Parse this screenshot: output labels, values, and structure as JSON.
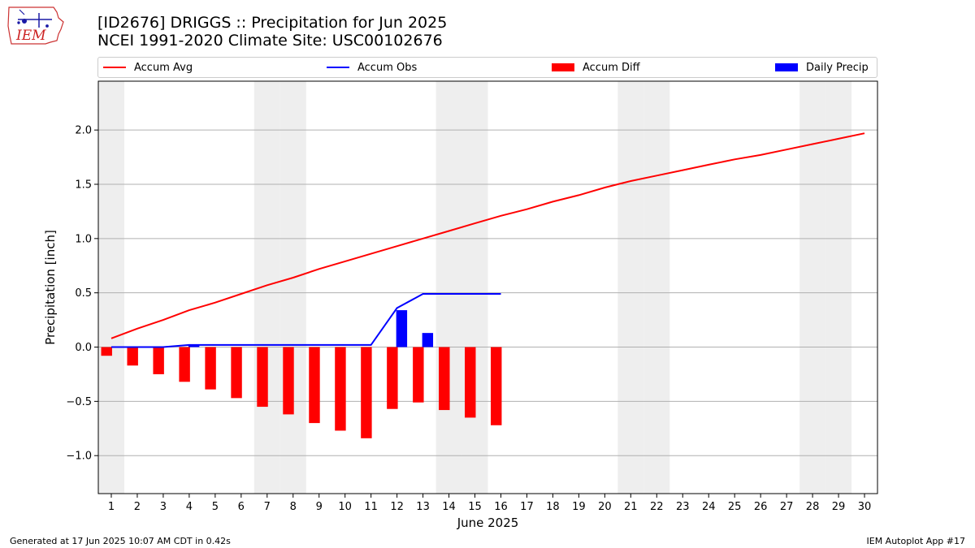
{
  "logo": {
    "text": "IEM"
  },
  "title": {
    "line1": "[ID2676] DRIGGS :: Precipitation for Jun 2025",
    "line2": "NCEI 1991-2020 Climate Site: USC00102676"
  },
  "chart_data": {
    "type": "bar",
    "xlabel": "June 2025",
    "ylabel": "Precipitation [inch]",
    "ylim": [
      -1.35,
      2.45
    ],
    "yticks": [
      -1.0,
      -0.5,
      0.0,
      0.5,
      1.0,
      1.5,
      2.0
    ],
    "ytick_labels": [
      "−1.0",
      "−0.5",
      "0.0",
      "0.5",
      "1.0",
      "1.5",
      "2.0"
    ],
    "xlim": [
      0.5,
      30.5
    ],
    "categories": [
      "1",
      "2",
      "3",
      "4",
      "5",
      "6",
      "7",
      "8",
      "9",
      "10",
      "11",
      "12",
      "13",
      "14",
      "15",
      "16",
      "17",
      "18",
      "19",
      "20",
      "21",
      "22",
      "23",
      "24",
      "25",
      "26",
      "27",
      "28",
      "29",
      "30"
    ],
    "grid": "horizontal",
    "legend": "top",
    "weekend_shading": [
      1,
      7,
      8,
      14,
      15,
      21,
      22,
      28,
      29
    ],
    "series": [
      {
        "name": "Accum Avg",
        "kind": "line",
        "color": "#ff0000",
        "x": [
          1,
          2,
          3,
          4,
          5,
          6,
          7,
          8,
          9,
          10,
          11,
          12,
          13,
          14,
          15,
          16,
          17,
          18,
          19,
          20,
          21,
          22,
          23,
          24,
          25,
          26,
          27,
          28,
          29,
          30
        ],
        "values": [
          0.08,
          0.17,
          0.25,
          0.34,
          0.41,
          0.49,
          0.57,
          0.64,
          0.72,
          0.79,
          0.86,
          0.93,
          1.0,
          1.07,
          1.14,
          1.21,
          1.27,
          1.34,
          1.4,
          1.47,
          1.53,
          1.58,
          1.63,
          1.68,
          1.73,
          1.77,
          1.82,
          1.87,
          1.92,
          1.97
        ]
      },
      {
        "name": "Accum Obs",
        "kind": "line",
        "color": "#0000ff",
        "x": [
          1,
          2,
          3,
          4,
          5,
          6,
          7,
          8,
          9,
          10,
          11,
          12,
          13,
          14,
          15,
          16
        ],
        "values": [
          0.0,
          0.0,
          0.0,
          0.02,
          0.02,
          0.02,
          0.02,
          0.02,
          0.02,
          0.02,
          0.02,
          0.36,
          0.49,
          0.49,
          0.49,
          0.49
        ]
      },
      {
        "name": "Accum Diff",
        "kind": "bar",
        "color": "#ff0000",
        "x": [
          1,
          2,
          3,
          4,
          5,
          6,
          7,
          8,
          9,
          10,
          11,
          12,
          13,
          14,
          15,
          16
        ],
        "values": [
          -0.08,
          -0.17,
          -0.25,
          -0.32,
          -0.39,
          -0.47,
          -0.55,
          -0.62,
          -0.7,
          -0.77,
          -0.84,
          -0.57,
          -0.51,
          -0.58,
          -0.65,
          -0.72
        ]
      },
      {
        "name": "Daily Precip",
        "kind": "bar",
        "color": "#0000ff",
        "x": [
          4,
          12,
          13
        ],
        "values": [
          0.02,
          0.34,
          0.13
        ]
      }
    ]
  },
  "footer": {
    "generated": "Generated at 17 Jun 2025 10:07 AM CDT in 0.42s",
    "app": "IEM Autoplot App #17"
  }
}
